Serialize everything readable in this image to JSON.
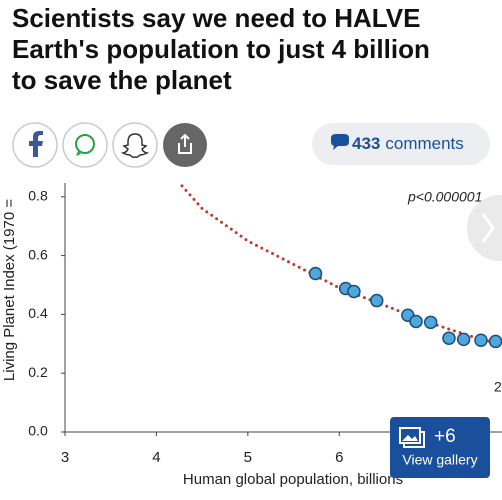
{
  "header": {
    "headline": [
      "Scientists say we need to HALVE",
      "Earth's population to just 4 billion",
      "to save the planet"
    ]
  },
  "comments": {
    "count": 433,
    "label": "comments"
  },
  "gallery": {
    "count": "+6",
    "label": "View gallery"
  },
  "chart_data": {
    "type": "scatter",
    "x_label": "Human global population, billions",
    "y_label": "Living Planet Index (1970 =",
    "annotations": [
      "p<0.000001",
      "2"
    ],
    "x": [
      5.74,
      6.07,
      6.16,
      6.41,
      6.75,
      6.84,
      7.0,
      7.2,
      7.36,
      7.55,
      7.71
    ],
    "values": [
      0.539,
      0.488,
      0.478,
      0.447,
      0.397,
      0.376,
      0.373,
      0.319,
      0.315,
      0.312,
      0.308
    ],
    "color": "#4ea8de",
    "trend": {
      "x": [
        4.28,
        4.5,
        5,
        5.5,
        6,
        6.5,
        7,
        7.5,
        7.75
      ],
      "values": [
        0.837,
        0.76,
        0.65,
        0.57,
        0.49,
        0.43,
        0.37,
        0.32,
        0.3
      ],
      "color": "#c0392b"
    },
    "xlim": [
      3,
      7.78
    ],
    "ylim": [
      0,
      0.84
    ],
    "xticks": [
      3,
      4,
      5,
      6
    ],
    "yticks": [
      {
        "value": 0,
        "label": "0.0"
      },
      0.2,
      0.4,
      0.6,
      0.8
    ]
  }
}
